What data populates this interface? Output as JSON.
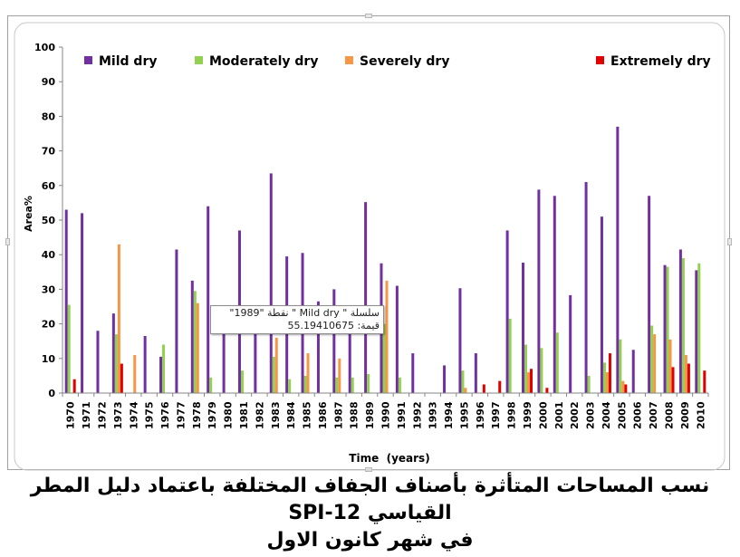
{
  "chart_data": {
    "type": "bar",
    "ylabel": "Area%",
    "xlabel": "Time  (years)",
    "ylim": [
      0,
      100
    ],
    "yticks": [
      "0",
      "10",
      "20",
      "30",
      "40",
      "50",
      "60",
      "70",
      "80",
      "90",
      "100"
    ],
    "grid": false,
    "legend_position": "top",
    "categories": [
      "1970",
      "1971",
      "1972",
      "1973",
      "1974",
      "1975",
      "1976",
      "1977",
      "1978",
      "1979",
      "1980",
      "1981",
      "1982",
      "1983",
      "1984",
      "1985",
      "1986",
      "1987",
      "1988",
      "1989",
      "1990",
      "1991",
      "1992",
      "1993",
      "1994",
      "1995",
      "1996",
      "1997",
      "1998",
      "1999",
      "2000",
      "2001",
      "2002",
      "2003",
      "2004",
      "2005",
      "2006",
      "2007",
      "2008",
      "2009",
      "2010"
    ],
    "series": [
      {
        "name": "Mild dry",
        "color": "#7030a0",
        "values": [
          53,
          52,
          18,
          23,
          0,
          16.5,
          10.5,
          41.5,
          32.5,
          54,
          18,
          47,
          18,
          63.5,
          39.5,
          40.5,
          26.5,
          30,
          18,
          55.2,
          37.5,
          31,
          11.5,
          0,
          8,
          30.3,
          11.5,
          0,
          47,
          37.7,
          58.8,
          57,
          28.3,
          61,
          51,
          77,
          12.5,
          57,
          37,
          41.5,
          35.5
        ]
      },
      {
        "name": "Moderately dry",
        "color": "#92d050",
        "values": [
          25.5,
          0,
          0,
          17,
          0,
          0,
          14,
          0,
          29.5,
          4.5,
          0,
          6.5,
          0,
          10.5,
          4,
          5,
          0,
          4.5,
          4.5,
          5.5,
          20,
          4.5,
          0,
          0,
          0,
          6.5,
          0,
          0,
          21.5,
          14,
          13,
          17.5,
          0,
          5,
          8.8,
          15.5,
          0,
          19.5,
          36.5,
          39,
          37.5
        ]
      },
      {
        "name": "Severely dry",
        "color": "#f79646",
        "values": [
          0,
          0,
          0,
          43,
          11,
          0,
          0,
          0,
          26,
          0,
          0,
          0,
          0,
          16,
          0,
          11.5,
          0,
          10,
          0,
          0,
          32.5,
          0,
          0,
          0,
          0,
          1.5,
          0,
          0,
          0,
          6,
          0,
          0,
          0,
          0,
          6,
          3.5,
          0,
          17,
          15.5,
          11,
          0
        ]
      },
      {
        "name": "Extremely dry",
        "color": "#e00000",
        "values": [
          4,
          0,
          0,
          8.5,
          0,
          0,
          0,
          0,
          0,
          0,
          0,
          0,
          0,
          0,
          0,
          0,
          0,
          0,
          0,
          0,
          0,
          0,
          0,
          0,
          0,
          0,
          2.5,
          3.5,
          0,
          7,
          1.5,
          0,
          0,
          0,
          11.5,
          2.5,
          0,
          0,
          7.5,
          8.5,
          6.5
        ]
      }
    ]
  },
  "tooltip": {
    "line1": "سلسلة \" Mild dry \" نقطة \"1989\"",
    "line2": "قيمة: 55.19410675"
  },
  "caption": {
    "line1": "نسب المساحات المتأثرة بأصناف الجفاف المختلفة باعتماد دليل المطر القياسي SPI-12",
    "line2": "في شهر كانون الاول"
  }
}
